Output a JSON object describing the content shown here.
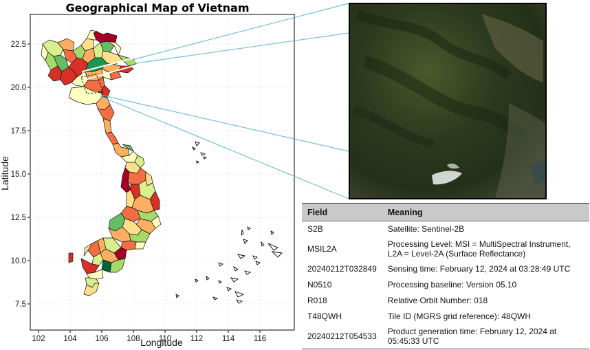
{
  "map": {
    "title": "Geographical Map of Vietnam",
    "xlabel": "Longitude",
    "ylabel": "Latitude",
    "x_ticks": [
      "102",
      "104",
      "106",
      "108",
      "110",
      "112",
      "114",
      "116"
    ],
    "y_ticks": [
      "22.5",
      "20.0",
      "17.5",
      "15.0",
      "12.5",
      "10.0",
      "7.5"
    ],
    "xlim": [
      101.2,
      117.7
    ],
    "ylim": [
      6.5,
      24.1
    ],
    "palette": [
      "#a50026",
      "#d73027",
      "#f46d43",
      "#fdae61",
      "#fee08b",
      "#ffffbf",
      "#d9ef8b",
      "#a6d96a",
      "#66bd63",
      "#1a9850",
      "#006837"
    ],
    "inset": {
      "kind": "satellite-image",
      "frame_color": "#000000",
      "callout_color": "#5ab4d6"
    }
  },
  "table": {
    "headers": [
      "Field",
      "Meaning"
    ],
    "rows": [
      {
        "field": "S2B",
        "meaning": "Satellite: Sentinel-2B"
      },
      {
        "field": "MSIL2A",
        "meaning": "Processing Level: MSI = MultiSpectral Instrument, L2A = Level-2A (Surface Reflectance)"
      },
      {
        "field": "20240212T032849",
        "meaning": "Sensing time: February 12, 2024 at 03:28:49 UTC"
      },
      {
        "field": "N0510",
        "meaning": "Processing baseline: Version 05.10"
      },
      {
        "field": "R018",
        "meaning": "Relative Orbit Number: 018"
      },
      {
        "field": "T48QWH",
        "meaning": "Tile ID (MGRS grid reference): 48QWH"
      },
      {
        "field": "20240212T054533",
        "meaning": "Product generation time: February 12, 2024 at 05:45:33 UTC"
      }
    ]
  }
}
